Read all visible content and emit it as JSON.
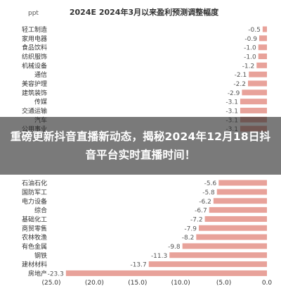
{
  "headline": "重磅更新抖音直播新动态，揭秘2024年12月18日抖音平台实时直播时间！",
  "chart_data": {
    "type": "bar",
    "orientation": "horizontal",
    "title": "2024E 2024年3月以来盈利预测调整幅度",
    "unit_label": "ppt",
    "bar_color": "#e8a29a",
    "categories": [
      "轻工制造",
      "家用电器",
      "食品饮料",
      "纺织服饰",
      "机械设备",
      "通信",
      "美容护理",
      "建筑装饰",
      "传媒",
      "交通运输",
      "汽车",
      "公用事业",
      "",
      "",
      "",
      "",
      "",
      "石油石化",
      "国防军工",
      "电力设备",
      "综合",
      "基础化工",
      "商贸零售",
      "农林牧渔",
      "有色金属",
      "钢铁",
      "建材材料",
      "房地产"
    ],
    "values": [
      -0.5,
      -0.9,
      -1.0,
      -1.0,
      -1.2,
      -2.1,
      -2.2,
      -2.9,
      -3.1,
      -3.1,
      -3.1,
      -3.1,
      null,
      null,
      null,
      null,
      null,
      -5.6,
      -5.8,
      -6.2,
      -6.7,
      -7.2,
      -7.9,
      -8.2,
      -9.8,
      -11.3,
      -13.7,
      -23.3
    ],
    "data_labels": [
      "-0.5",
      "-0.9",
      "-1.0",
      "-1.0",
      "-1.2",
      "-2.1",
      "-2.2",
      "-2.9",
      "-3.1",
      "-3.1",
      "-3.1",
      "-3.1",
      "",
      "",
      "",
      "",
      "",
      "-5.6",
      "-5.8",
      "-6.2",
      "-6.7",
      "-7.2",
      "-7.9",
      "-8.2",
      "-9.8",
      "-11.3",
      "-13.7",
      "-23.3"
    ],
    "xlim": [
      -25,
      0
    ],
    "xticks": [
      -25,
      -20,
      -15,
      -10,
      -5,
      0
    ],
    "xtick_labels": [
      "(25.0)",
      "(20.0)",
      "(15.0)",
      "(10.0)",
      "(5.0)",
      "0.0"
    ],
    "grid": false
  }
}
